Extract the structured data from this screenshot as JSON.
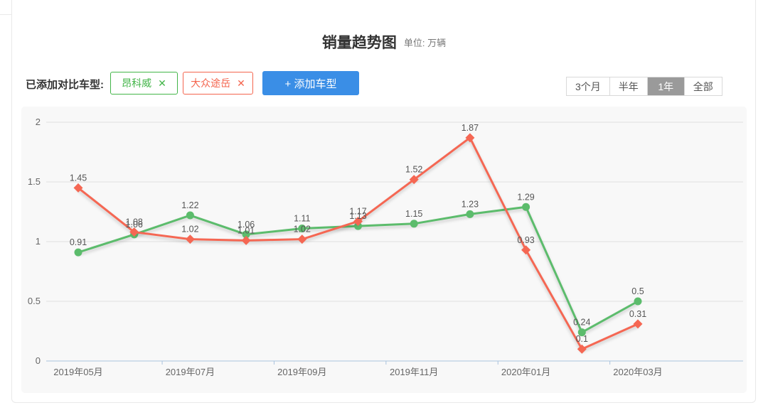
{
  "header": {
    "title": "销量趋势图",
    "unit_label": "单位: 万辆"
  },
  "toolbar": {
    "compare_label": "已添加对比车型:",
    "tags": [
      {
        "label": "昂科威",
        "close_icon": "✕",
        "color": "#43b549"
      },
      {
        "label": "大众途岳",
        "close_icon": "✕",
        "color": "#f4654e"
      }
    ],
    "add_button_label": "+ 添加车型",
    "add_button_color": "#3a8ee6",
    "range_buttons": [
      {
        "label": "3个月",
        "active": false
      },
      {
        "label": "半年",
        "active": false
      },
      {
        "label": "1年",
        "active": true
      },
      {
        "label": "全部",
        "active": false
      }
    ]
  },
  "chart_data": {
    "type": "line",
    "title": "销量趋势图",
    "unit": "万辆",
    "num_points": 11,
    "x_tick_labels": [
      "2019年05月",
      "2019年07月",
      "2019年09月",
      "2019年11月",
      "2020年01月",
      "2020年03月"
    ],
    "x_tick_label_indices": [
      0,
      2,
      4,
      6,
      8,
      10
    ],
    "y_ticks": [
      0,
      0.5,
      1,
      1.5,
      2
    ],
    "ylim": [
      0,
      2
    ],
    "grid": true,
    "legend_position": "tags-above-chart",
    "series": [
      {
        "name": "昂科威",
        "color": "#5cbc6c",
        "symbol": "circle",
        "values": [
          0.91,
          1.06,
          1.22,
          1.06,
          1.11,
          1.13,
          1.15,
          1.23,
          1.29,
          0.24,
          0.5
        ]
      },
      {
        "name": "大众途岳",
        "color": "#f56753",
        "symbol": "diamond",
        "values": [
          1.45,
          1.08,
          1.02,
          1.01,
          1.02,
          1.17,
          1.52,
          1.87,
          0.93,
          0.1,
          0.31
        ]
      }
    ],
    "colors": {
      "grid_line": "#e0e0e0",
      "axis_line": "#aac3de",
      "tick_label": "#666666",
      "data_label": "#555555",
      "plot_background": "#f8f8f8"
    }
  }
}
